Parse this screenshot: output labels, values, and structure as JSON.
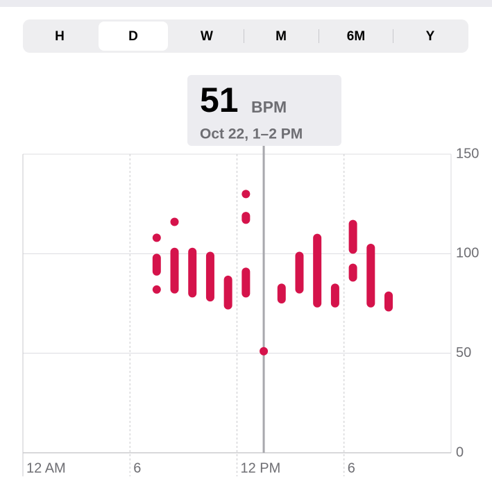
{
  "segments": [
    "H",
    "D",
    "W",
    "M",
    "6M",
    "Y"
  ],
  "selected_segment": "D",
  "chart_data": {
    "type": "range",
    "tooltip": {
      "value": 51,
      "unit": "BPM",
      "label": "Oct 22, 1–2 PM"
    },
    "x": [
      7,
      7,
      7,
      8,
      8,
      9,
      10,
      11,
      12,
      12,
      12,
      13,
      14,
      15,
      16,
      17,
      18,
      18,
      19,
      20
    ],
    "low": [
      108,
      89,
      82,
      116,
      80,
      78,
      76,
      72,
      130,
      115,
      78,
      51,
      75,
      80,
      73,
      73,
      100,
      86,
      73,
      71
    ],
    "high": [
      108,
      100,
      82,
      116,
      103,
      103,
      101,
      89,
      130,
      121,
      93,
      51,
      85,
      101,
      110,
      85,
      117,
      95,
      105,
      81
    ],
    "color": "#d5134b",
    "xlim": [
      0,
      24
    ],
    "xticks": [
      {
        "value": 0,
        "label": "12 AM"
      },
      6,
      {
        "value": 12,
        "label": "12 PM"
      },
      {
        "value": 18,
        "label": "6"
      }
    ],
    "ylim": [
      0,
      150
    ],
    "yticks": [
      0,
      50,
      100,
      150
    ],
    "grid": true
  }
}
